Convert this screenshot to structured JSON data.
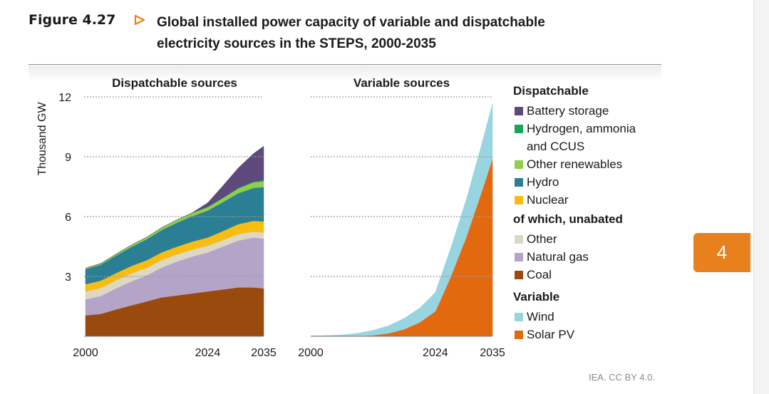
{
  "figure": {
    "label": "Figure 4.27",
    "title_line1": "Global installed power capacity of variable and dispatchable",
    "title_line2": "electricity sources in the STEPS, 2000-2035",
    "credit": "IEA. CC BY 4.0."
  },
  "chapter_tab": "4",
  "colors": {
    "coal": "#9a4a0c",
    "natural_gas": "#b4a5c8",
    "other": "#dcd8c4",
    "nuclear": "#f7bd12",
    "hydro": "#2b7f94",
    "other_renewables": "#8fce4e",
    "hydrogen": "#17a55a",
    "battery": "#5d4a7a",
    "wind": "#99d5e0",
    "solar": "#e2690e",
    "accent": "#e8811d",
    "grid": "#9a9a9a"
  },
  "legend": {
    "dispatchable_header": "Dispatchable",
    "unabated_header": "of which, unabated",
    "variable_header": "Variable",
    "dispatchable_items": [
      {
        "key": "battery",
        "lines": [
          "Battery storage"
        ]
      },
      {
        "key": "hydrogen",
        "lines": [
          "Hydrogen, ammonia",
          "and CCUS"
        ]
      },
      {
        "key": "other_renewables",
        "lines": [
          "Other renewables"
        ]
      },
      {
        "key": "hydro",
        "lines": [
          "Hydro"
        ]
      },
      {
        "key": "nuclear",
        "lines": [
          "Nuclear"
        ]
      }
    ],
    "unabated_items": [
      {
        "key": "other",
        "lines": [
          "Other"
        ]
      },
      {
        "key": "natural_gas",
        "lines": [
          "Natural gas"
        ]
      },
      {
        "key": "coal",
        "lines": [
          "Coal"
        ]
      }
    ],
    "variable_items": [
      {
        "key": "wind",
        "lines": [
          "Wind"
        ]
      },
      {
        "key": "solar",
        "lines": [
          "Solar PV"
        ]
      }
    ]
  },
  "chart_data": [
    {
      "type": "area",
      "stacked": true,
      "title": "Dispatchable sources",
      "ylabel": "Thousand GW",
      "ylim": [
        0,
        12
      ],
      "yticks": [
        3,
        6,
        9,
        12
      ],
      "grid": true,
      "x": [
        2000,
        2003,
        2006,
        2009,
        2012,
        2015,
        2018,
        2021,
        2024,
        2027,
        2030,
        2033,
        2035
      ],
      "x_tick_labels": [
        "2000",
        "2024",
        "2035"
      ],
      "series": [
        {
          "key": "coal",
          "values": [
            1.05,
            1.12,
            1.35,
            1.55,
            1.75,
            1.95,
            2.05,
            2.15,
            2.25,
            2.35,
            2.45,
            2.45,
            2.4
          ]
        },
        {
          "key": "natural_gas",
          "values": [
            0.8,
            0.9,
            1.05,
            1.2,
            1.3,
            1.5,
            1.7,
            1.85,
            1.95,
            2.15,
            2.35,
            2.5,
            2.5
          ]
        },
        {
          "key": "other",
          "values": [
            0.4,
            0.4,
            0.4,
            0.4,
            0.38,
            0.38,
            0.36,
            0.35,
            0.34,
            0.33,
            0.32,
            0.3,
            0.3
          ]
        },
        {
          "key": "nuclear",
          "values": [
            0.36,
            0.37,
            0.37,
            0.38,
            0.38,
            0.38,
            0.39,
            0.4,
            0.41,
            0.45,
            0.5,
            0.54,
            0.56
          ]
        },
        {
          "key": "hydro",
          "values": [
            0.75,
            0.8,
            0.88,
            0.95,
            1.05,
            1.12,
            1.2,
            1.28,
            1.35,
            1.45,
            1.55,
            1.65,
            1.72
          ]
        },
        {
          "key": "other_renewables",
          "values": [
            0.05,
            0.06,
            0.07,
            0.09,
            0.1,
            0.12,
            0.14,
            0.16,
            0.18,
            0.2,
            0.24,
            0.28,
            0.3
          ]
        },
        {
          "key": "hydrogen",
          "values": [
            0,
            0,
            0,
            0,
            0,
            0,
            0,
            0,
            0.01,
            0.02,
            0.03,
            0.04,
            0.05
          ]
        },
        {
          "key": "battery",
          "values": [
            0,
            0,
            0,
            0,
            0,
            0,
            0,
            0.01,
            0.2,
            0.6,
            1.0,
            1.4,
            1.7
          ]
        }
      ]
    },
    {
      "type": "area",
      "stacked": true,
      "title": "Variable sources",
      "ylim": [
        0,
        12
      ],
      "yticks": [
        3,
        6,
        9,
        12
      ],
      "grid": true,
      "x": [
        2000,
        2003,
        2006,
        2009,
        2012,
        2015,
        2018,
        2021,
        2024,
        2027,
        2030,
        2033,
        2035
      ],
      "x_tick_labels": [
        "2000",
        "2024",
        "2035"
      ],
      "series": [
        {
          "key": "solar",
          "values": [
            0,
            0,
            0,
            0.01,
            0.05,
            0.15,
            0.35,
            0.7,
            1.25,
            3.0,
            5.0,
            7.3,
            8.9
          ]
        },
        {
          "key": "wind",
          "values": [
            0.02,
            0.04,
            0.07,
            0.14,
            0.25,
            0.38,
            0.55,
            0.72,
            0.95,
            1.45,
            1.9,
            2.4,
            2.75
          ]
        }
      ]
    }
  ]
}
